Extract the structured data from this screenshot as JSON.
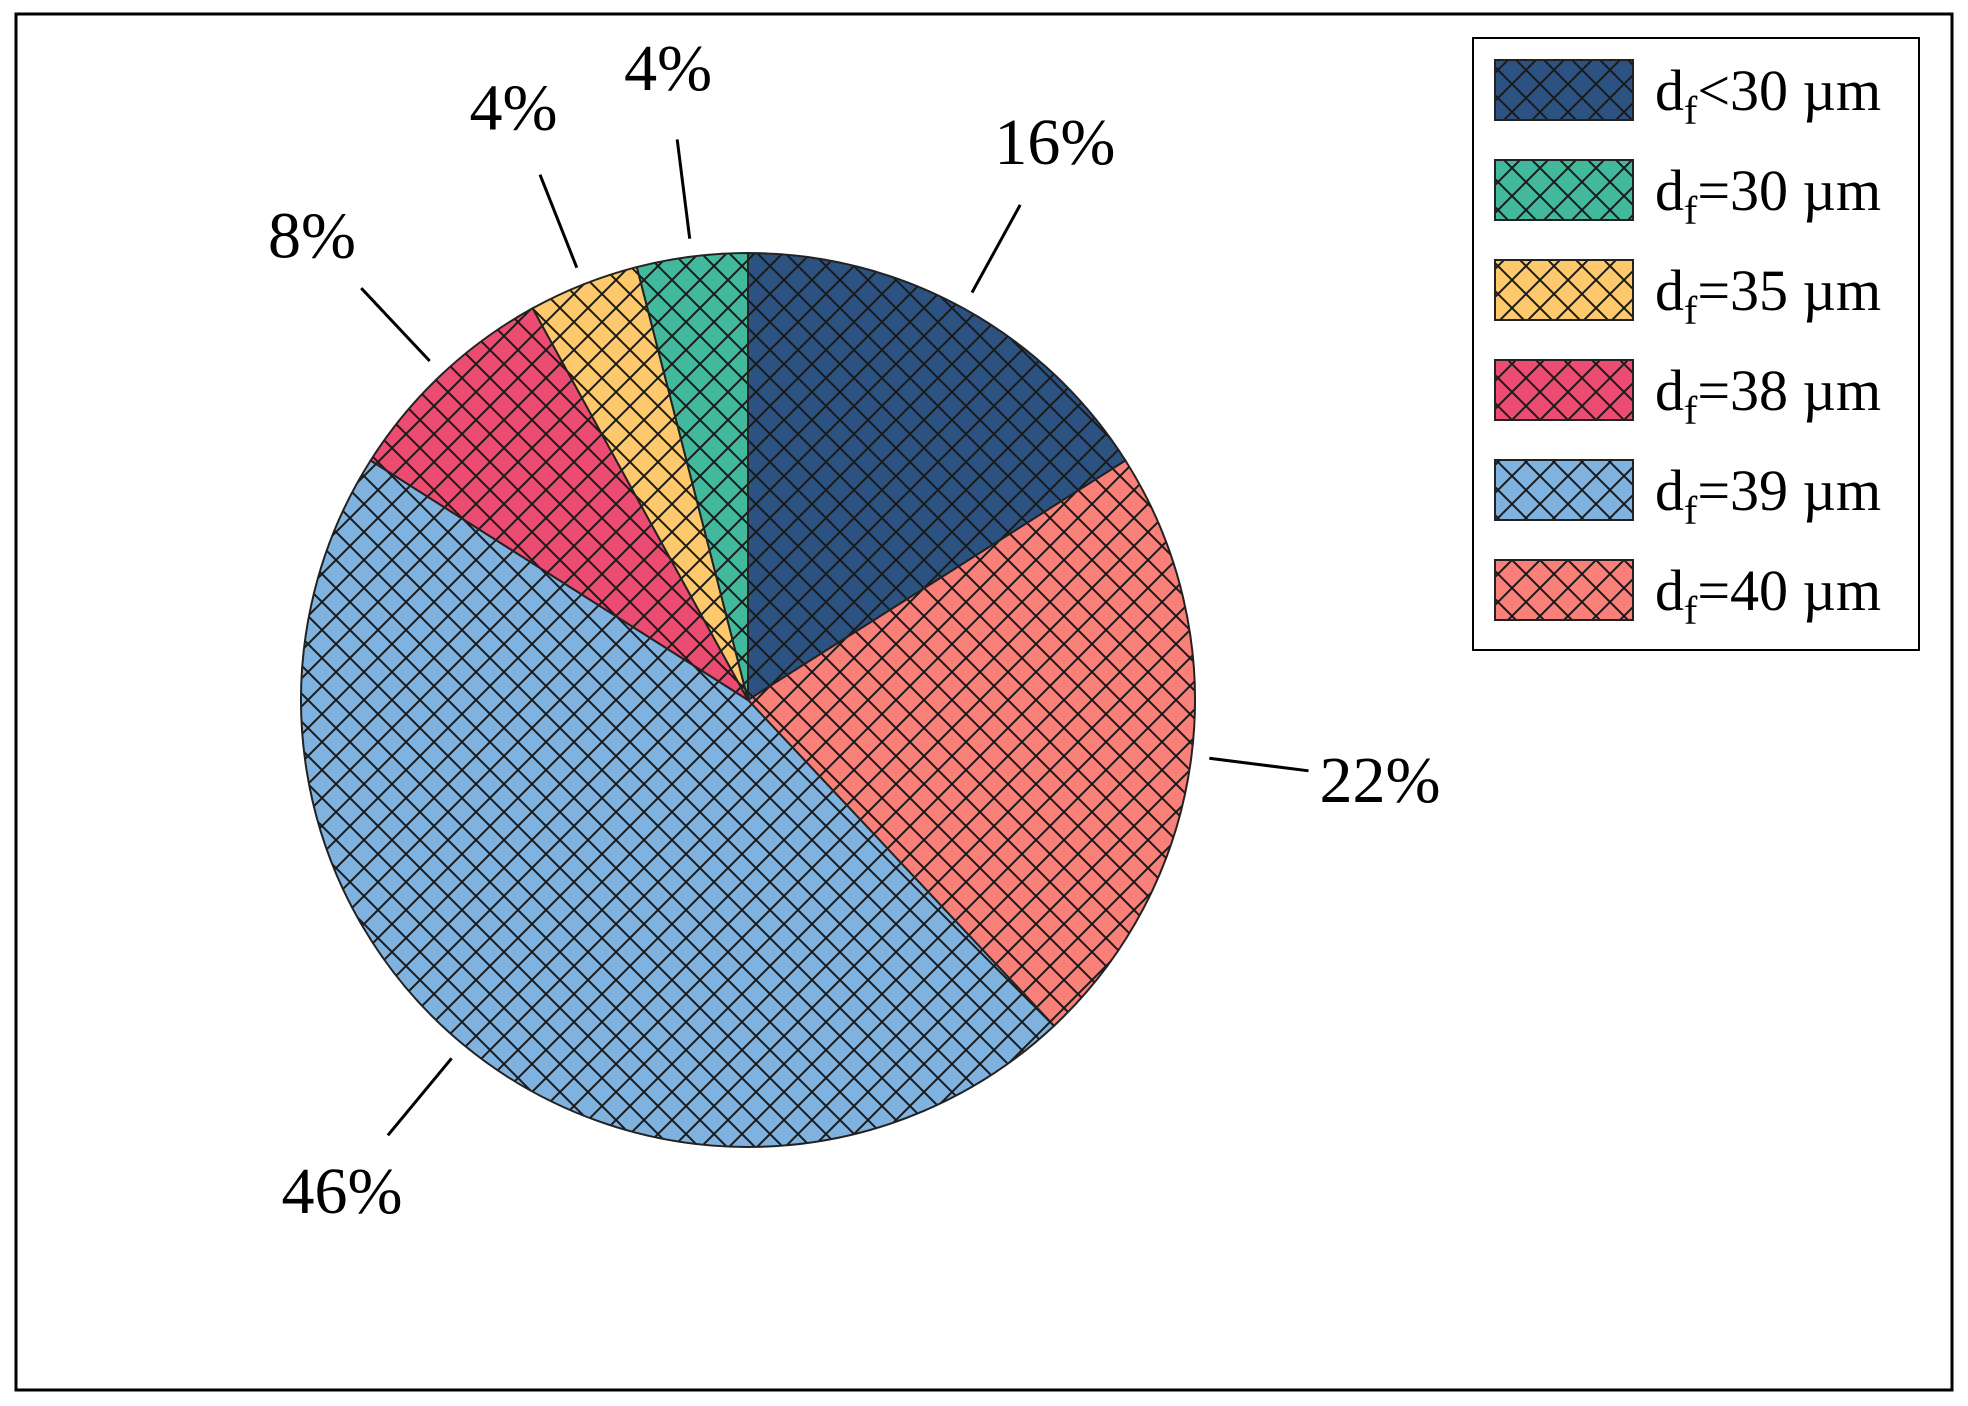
{
  "chart_data": {
    "type": "pie",
    "start_angle_deg": 90,
    "direction": "clockwise",
    "slices": [
      {
        "label": "d_f<30 µm",
        "legend_main": "d",
        "legend_sub": "f",
        "legend_rest": "<30 µm",
        "value": 16,
        "value_label": "16%",
        "color": "#2b5280"
      },
      {
        "label": "d_f=40 µm",
        "legend_main": "d",
        "legend_sub": "f",
        "legend_rest": "=40 µm",
        "value": 22,
        "value_label": "22%",
        "color": "#f97f79"
      },
      {
        "label": "d_f=39 µm",
        "legend_main": "d",
        "legend_sub": "f",
        "legend_rest": "=39 µm",
        "value": 46,
        "value_label": "46%",
        "color": "#7fb2df"
      },
      {
        "label": "d_f=38 µm",
        "legend_main": "d",
        "legend_sub": "f",
        "legend_rest": "=38 µm",
        "value": 8,
        "value_label": "8%",
        "color": "#ec4c71"
      },
      {
        "label": "d_f=35 µm",
        "legend_main": "d",
        "legend_sub": "f",
        "legend_rest": "=35 µm",
        "value": 4,
        "value_label": "4%",
        "color": "#fdc96c"
      },
      {
        "label": "d_f=30 µm",
        "legend_main": "d",
        "legend_sub": "f",
        "legend_rest": "=30 µm",
        "value": 4,
        "value_label": "4%",
        "color": "#42b99c"
      }
    ],
    "legend_order": [
      0,
      5,
      4,
      3,
      2,
      1
    ],
    "legend_position": "top-right",
    "hatch": "crosshatch"
  }
}
